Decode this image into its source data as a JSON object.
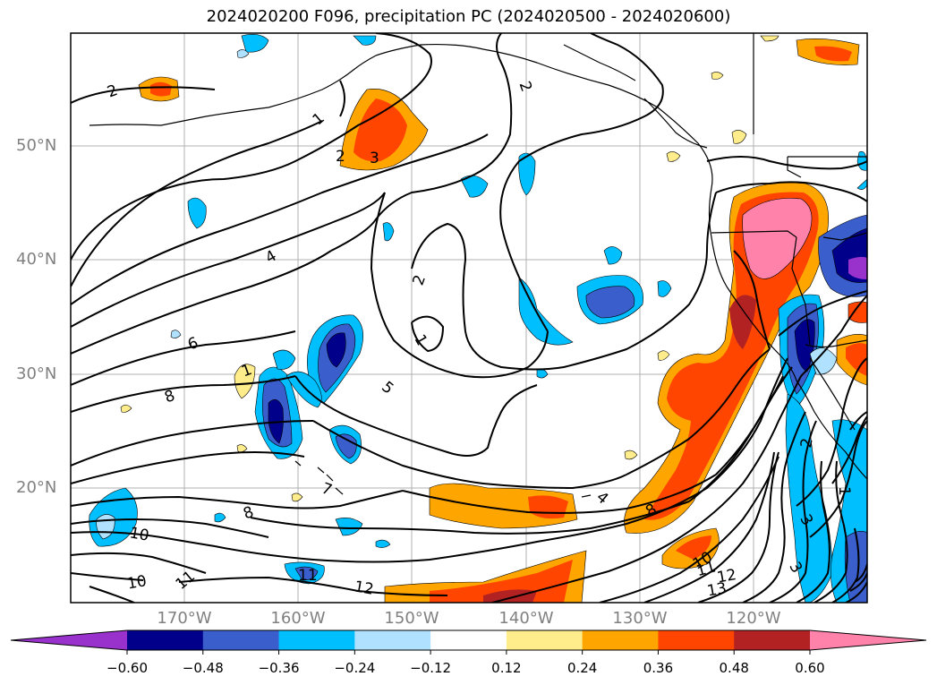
{
  "title": "2024020200 F096, precipitation PC (2024020500 - 2024020600)",
  "map": {
    "projection": "plate-carree",
    "lon_range": [
      -180,
      -110
    ],
    "lat_range": [
      10,
      60
    ],
    "lat_ticks": [
      "50°N",
      "40°N",
      "30°N",
      "20°N"
    ],
    "lon_ticks": [
      "170°W",
      "160°W",
      "150°W",
      "140°W",
      "130°W",
      "120°W"
    ],
    "grid": true
  },
  "contour_labels": [
    "2",
    "1",
    "2",
    "3",
    "2",
    "4",
    "6",
    "2",
    "1",
    "8",
    "5",
    "7",
    "8",
    "10",
    "10",
    "11",
    "11",
    "12",
    "1",
    "8",
    "10",
    "11",
    "12",
    "13",
    "4",
    "2",
    "1",
    "3",
    "3"
  ],
  "colorbar": {
    "levels": [
      "−0.60",
      "−0.48",
      "−0.36",
      "−0.24",
      "−0.12",
      "0.12",
      "0.24",
      "0.36",
      "0.48",
      "0.60"
    ],
    "colors": [
      "#9932cc",
      "#00008b",
      "#3a5fcd",
      "#00bfff",
      "#b0e2ff",
      "#ffffff",
      "#ffec8b",
      "#ffa500",
      "#ff4500",
      "#b22222",
      "#ff82ab"
    ],
    "extend": "both"
  }
}
